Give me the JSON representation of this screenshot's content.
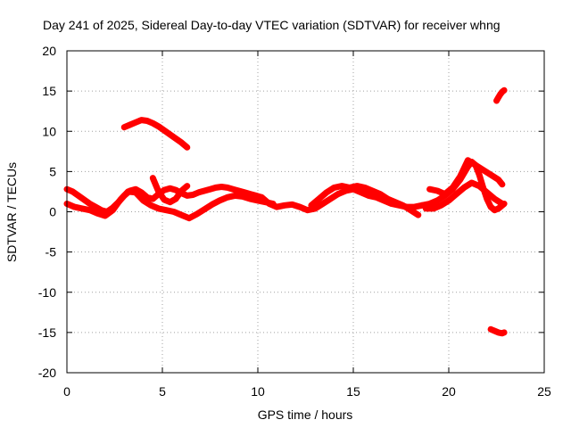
{
  "chart_data": {
    "type": "scatter",
    "title": "Day 241 of 2025, Sidereal Day-to-day VTEC variation (SDTVAR) for receiver whng",
    "xlabel": "GPS time / hours",
    "ylabel": "SDTVAR / TECUs",
    "xlim": [
      0,
      25
    ],
    "ylim": [
      -20,
      20
    ],
    "xticks": [
      0,
      5,
      10,
      15,
      20,
      25
    ],
    "yticks": [
      -20,
      -15,
      -10,
      -5,
      0,
      5,
      10,
      15,
      20
    ],
    "grid": true,
    "series": [
      {
        "name": "arc-main-upper",
        "color": "#ff0000",
        "x": [
          0.0,
          0.3,
          0.6,
          0.9,
          1.2,
          1.5,
          1.8,
          2.1,
          2.4,
          2.7,
          3.0,
          3.3,
          3.6,
          3.9,
          4.2,
          4.5,
          4.8,
          5.1,
          5.4,
          5.7,
          6.0,
          6.3,
          6.6,
          6.9,
          7.2,
          7.5,
          7.8,
          8.1,
          8.4,
          8.7,
          9.0,
          9.3,
          9.6,
          9.9,
          10.2
        ],
        "y": [
          2.8,
          2.5,
          2.0,
          1.5,
          1.0,
          0.6,
          0.2,
          0.0,
          0.5,
          1.2,
          2.0,
          2.6,
          2.8,
          2.4,
          1.8,
          1.6,
          2.2,
          2.7,
          2.9,
          2.7,
          2.3,
          2.0,
          2.1,
          2.4,
          2.6,
          2.8,
          3.0,
          3.1,
          3.0,
          2.8,
          2.6,
          2.4,
          2.2,
          2.0,
          1.8
        ]
      },
      {
        "name": "arc-main-lower",
        "color": "#ff0000",
        "x": [
          0.0,
          0.4,
          0.8,
          1.2,
          1.6,
          2.0,
          2.4,
          2.8,
          3.2,
          3.6,
          4.0,
          4.4,
          4.8,
          5.2,
          5.6,
          6.0,
          6.4,
          6.8,
          7.2,
          7.6,
          8.0,
          8.4,
          8.8,
          9.2,
          9.6,
          10.0,
          10.4,
          10.8
        ],
        "y": [
          1.0,
          0.6,
          0.4,
          0.2,
          -0.2,
          -0.5,
          0.2,
          1.5,
          2.5,
          2.4,
          1.4,
          0.8,
          0.4,
          0.2,
          0.0,
          -0.4,
          -0.8,
          -0.3,
          0.3,
          0.9,
          1.4,
          1.8,
          2.0,
          1.9,
          1.6,
          1.4,
          1.2,
          1.0
        ]
      },
      {
        "name": "arc-hump-5h",
        "color": "#ff0000",
        "x": [
          4.5,
          4.8,
          5.1,
          5.4,
          5.7,
          6.0,
          6.3
        ],
        "y": [
          4.2,
          2.5,
          1.5,
          1.2,
          1.6,
          2.6,
          3.2
        ]
      },
      {
        "name": "arc-high-3h",
        "color": "#ff0000",
        "x": [
          3.0,
          3.3,
          3.6,
          3.9,
          4.2,
          4.5,
          4.8,
          5.1,
          5.4,
          5.7,
          6.0,
          6.3
        ],
        "y": [
          10.5,
          10.8,
          11.1,
          11.4,
          11.3,
          11.0,
          10.6,
          10.1,
          9.6,
          9.1,
          8.6,
          8.0
        ]
      },
      {
        "name": "arc-mid-10-15h",
        "color": "#ff0000",
        "x": [
          10.2,
          10.6,
          11.0,
          11.4,
          11.8,
          12.2,
          12.6,
          13.0,
          13.4,
          13.8,
          14.2,
          14.6,
          15.0,
          15.4,
          15.8,
          16.2,
          16.6,
          17.0,
          17.4,
          17.8,
          18.2,
          18.6
        ],
        "y": [
          1.8,
          1.0,
          0.6,
          0.8,
          0.9,
          0.6,
          0.2,
          0.4,
          1.0,
          1.6,
          2.2,
          2.6,
          2.8,
          2.4,
          2.0,
          1.8,
          1.4,
          1.0,
          0.8,
          0.6,
          0.6,
          0.8
        ]
      },
      {
        "name": "arc-mid-13-19h",
        "color": "#ff0000",
        "x": [
          12.8,
          13.2,
          13.6,
          14.0,
          14.4,
          14.8,
          15.2,
          15.6,
          16.0,
          16.4,
          16.8,
          17.2,
          17.6,
          18.0,
          18.4
        ],
        "y": [
          0.8,
          1.6,
          2.4,
          3.0,
          3.2,
          3.0,
          3.2,
          3.0,
          2.6,
          2.2,
          1.6,
          1.2,
          0.8,
          0.2,
          -0.4
        ]
      },
      {
        "name": "arc-late-18-22h",
        "color": "#ff0000",
        "x": [
          18.6,
          19.0,
          19.4,
          19.8,
          20.2,
          20.6,
          21.0,
          21.2,
          21.4,
          21.6,
          21.8,
          22.0,
          22.2,
          22.4,
          22.6,
          22.9
        ],
        "y": [
          0.8,
          1.0,
          1.4,
          2.0,
          2.8,
          4.0,
          5.6,
          6.2,
          5.8,
          4.6,
          3.0,
          1.6,
          0.6,
          0.2,
          0.4,
          1.0
        ]
      },
      {
        "name": "arc-late-lower",
        "color": "#ff0000",
        "x": [
          18.8,
          19.2,
          19.6,
          20.0,
          20.4,
          20.8,
          21.2,
          21.6,
          22.0,
          22.4,
          22.8
        ],
        "y": [
          0.4,
          0.4,
          0.8,
          1.4,
          2.2,
          3.0,
          3.6,
          3.2,
          2.4,
          1.6,
          1.0
        ]
      },
      {
        "name": "arc-late-upper-spikes",
        "color": "#ff0000",
        "x": [
          19.0,
          19.4,
          19.8,
          20.2,
          20.6,
          21.0,
          22.6,
          22.8
        ],
        "y": [
          2.8,
          2.6,
          2.2,
          3.0,
          4.4,
          6.4,
          4.0,
          3.4
        ]
      },
      {
        "name": "arc-high-22h",
        "color": "#ff0000",
        "x": [
          22.5,
          22.6,
          22.7,
          22.8,
          22.9
        ],
        "y": [
          13.8,
          14.2,
          14.6,
          14.9,
          15.1
        ]
      },
      {
        "name": "arc-low-22h",
        "color": "#ff0000",
        "x": [
          22.2,
          22.4,
          22.6,
          22.8,
          22.9
        ],
        "y": [
          -14.6,
          -14.8,
          -15.0,
          -15.1,
          -15.0
        ]
      }
    ]
  }
}
